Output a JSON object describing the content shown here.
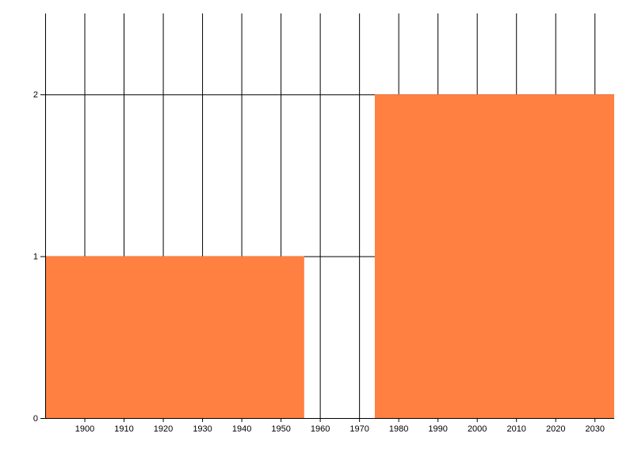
{
  "chart_data": {
    "type": "bar",
    "title": "",
    "xlabel": "",
    "ylabel": "",
    "xlim": [
      1890,
      2035
    ],
    "ylim": [
      0,
      2.5
    ],
    "x_ticks": [
      1900,
      1910,
      1920,
      1930,
      1940,
      1950,
      1960,
      1970,
      1980,
      1990,
      2000,
      2010,
      2020,
      2030
    ],
    "y_ticks": [
      0,
      1,
      2
    ],
    "grid": true,
    "bar_color": "#FF8040",
    "bars": [
      {
        "x_start": 1890,
        "x_end": 1956,
        "value": 1
      },
      {
        "x_start": 1974,
        "x_end": 2035,
        "value": 2
      }
    ]
  }
}
